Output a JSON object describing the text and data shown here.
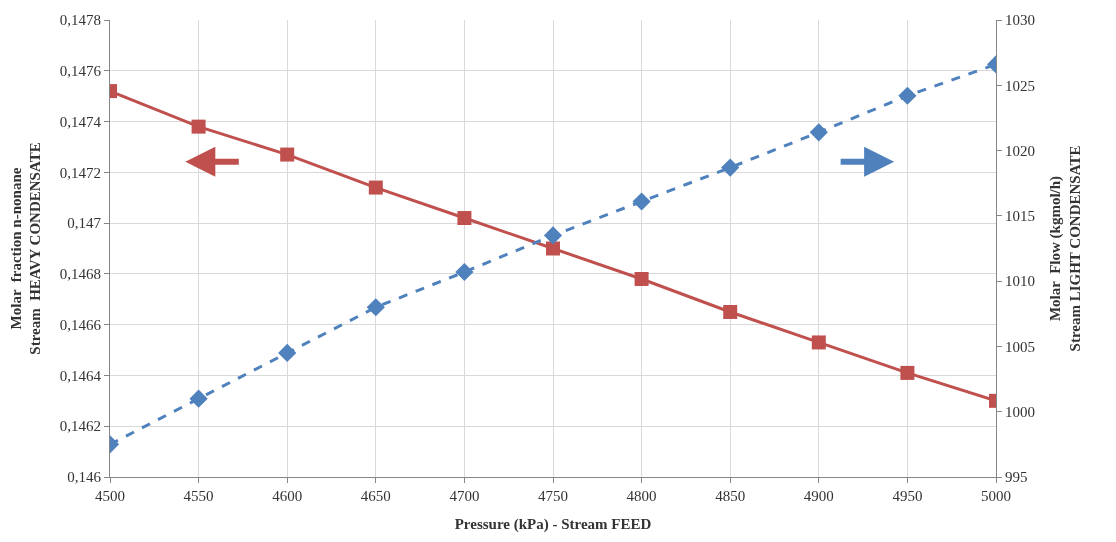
{
  "chart_data": {
    "type": "line",
    "xlabel": "Pressure (kPa) - Stream FEED",
    "ylabel": "Molar  fraction n-nonane\nStream  HEAVY CONDENSATE",
    "y2label": "Molar  Flow (kgmol/h)\nStream LIGHT CONDENSATE",
    "x": [
      4500,
      4550,
      4600,
      4650,
      4700,
      4750,
      4800,
      4850,
      4900,
      4950,
      5000
    ],
    "series": [
      {
        "color": "#c0504d",
        "marker": "square",
        "line_style": "solid",
        "values": [
          0.14752,
          0.14738,
          0.14727,
          0.14714,
          0.14702,
          0.1469,
          0.14678,
          0.14665,
          0.14653,
          0.14641,
          0.1463
        ]
      },
      {
        "color": "#4f81bd",
        "marker": "diamond",
        "line_style": "dashed",
        "axis": "y2",
        "values": [
          997.5,
          1001.0,
          1004.5,
          1008.0,
          1010.7,
          1013.5,
          1016.1,
          1018.7,
          1021.4,
          1024.2,
          1026.6
        ]
      }
    ],
    "xlim": [
      4500,
      5000
    ],
    "xticks": [
      4500,
      4550,
      4600,
      4650,
      4700,
      4750,
      4800,
      4850,
      4900,
      4950,
      5000
    ],
    "ylim": [
      0.146,
      0.1478
    ],
    "yticks": [
      {
        "value": 0.146,
        "label": "0,146"
      },
      {
        "value": 0.1462,
        "label": "0,1462"
      },
      {
        "value": 0.1464,
        "label": "0,1464"
      },
      {
        "value": 0.1466,
        "label": "0,1466"
      },
      {
        "value": 0.1468,
        "label": "0,1468"
      },
      {
        "value": 0.147,
        "label": "0,147"
      },
      {
        "value": 0.1472,
        "label": "0,1472"
      },
      {
        "value": 0.1474,
        "label": "0,1474"
      },
      {
        "value": 0.1476,
        "label": "0,1476"
      },
      {
        "value": 0.1478,
        "label": "0,1478"
      }
    ],
    "y2lim": [
      995,
      1030
    ],
    "y2ticks": [
      995,
      1000,
      1005,
      1010,
      1015,
      1020,
      1025,
      1030
    ],
    "grid": true,
    "legend": false
  }
}
